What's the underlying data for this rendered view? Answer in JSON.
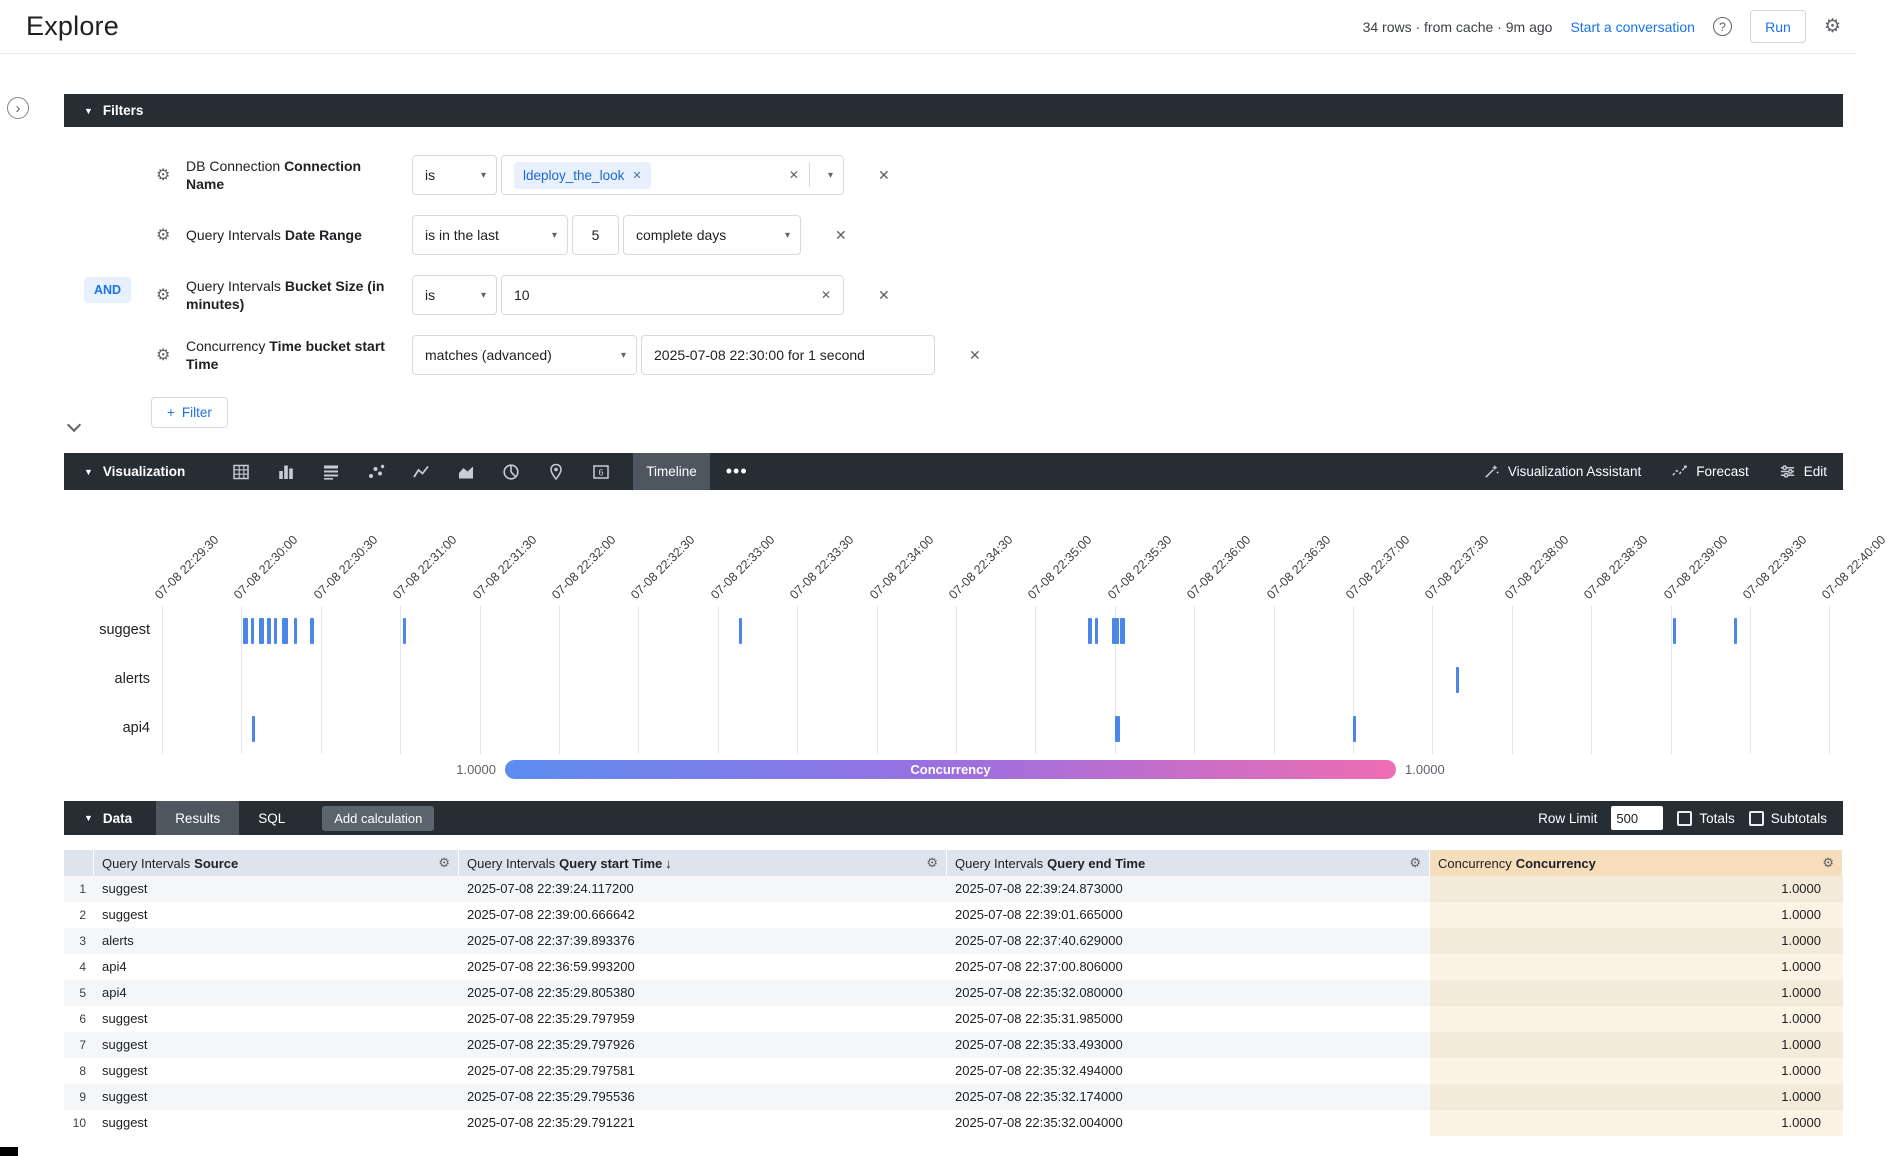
{
  "header": {
    "title": "Explore",
    "status": "34 rows · from cache · 9m ago",
    "conversation_link": "Start a conversation",
    "run_label": "Run"
  },
  "icons": {
    "gear": "⚙",
    "close": "✕",
    "caret_down": "▾",
    "triangle_down": "▼",
    "chevron_right": "›",
    "question": "?",
    "plus": "+",
    "dots": "•••"
  },
  "filters": {
    "section_label": "Filters",
    "and_label": "AND",
    "add_filter_label": "Filter",
    "rows": [
      {
        "kind": "chip",
        "field_prefix": "DB Connection",
        "field_name": "Connection Name",
        "operator": "is",
        "chip": "ldeploy_the_look"
      },
      {
        "kind": "last",
        "field_prefix": "Query Intervals",
        "field_name": "Date Range",
        "operator": "is in the last",
        "value": "5",
        "unit": "complete days"
      },
      {
        "kind": "text",
        "field_prefix": "Query Intervals",
        "field_name": "Bucket Size (in minutes)",
        "operator": "is",
        "value": "10"
      },
      {
        "kind": "advanced",
        "field_prefix": "Concurrency",
        "field_name": "Time bucket start Time",
        "operator": "matches (advanced)",
        "value": "2025-07-08 22:30:00 for 1 second"
      }
    ]
  },
  "visualization": {
    "section_label": "Visualization",
    "icons": [
      "table-icon",
      "column-chart-icon",
      "report-table-icon",
      "scatter-chart-icon",
      "line-chart-icon",
      "area-chart-icon",
      "pie-chart-icon",
      "map-icon",
      "single-value-icon"
    ],
    "single_value_glyph": "6",
    "active_tab": "Timeline",
    "assistant_label": "Visualization Assistant",
    "forecast_label": "Forecast",
    "edit_label": "Edit"
  },
  "chart_data": {
    "type": "timeline",
    "title": "",
    "x_axis": {
      "start": "2025-07-08 22:29:30",
      "interval_seconds": 30,
      "tick_labels": [
        "07-08 22:29:30",
        "07-08 22:30:00",
        "07-08 22:30:30",
        "07-08 22:31:00",
        "07-08 22:31:30",
        "07-08 22:32:00",
        "07-08 22:32:30",
        "07-08 22:33:00",
        "07-08 22:33:30",
        "07-08 22:34:00",
        "07-08 22:34:30",
        "07-08 22:35:00",
        "07-08 22:35:30",
        "07-08 22:36:00",
        "07-08 22:36:30",
        "07-08 22:37:00",
        "07-08 22:37:30",
        "07-08 22:38:00",
        "07-08 22:38:30",
        "07-08 22:39:00",
        "07-08 22:39:30",
        "07-08 22:40:00"
      ]
    },
    "rows": [
      "suggest",
      "alerts",
      "api4"
    ],
    "events": {
      "suggest": [
        {
          "t": 30.5,
          "d": 2
        },
        {
          "t": 33.5,
          "d": 1
        },
        {
          "t": 36.5,
          "d": 2
        },
        {
          "t": 39.5,
          "d": 1.5
        },
        {
          "t": 42.5,
          "d": 1
        },
        {
          "t": 45.5,
          "d": 2
        },
        {
          "t": 50,
          "d": 1
        },
        {
          "t": 56,
          "d": 1.5
        },
        {
          "t": 91,
          "d": 1
        },
        {
          "t": 218,
          "d": 1
        },
        {
          "t": 350,
          "d": 1.5
        },
        {
          "t": 352.5,
          "d": 1
        },
        {
          "t": 359,
          "d": 2.5
        },
        {
          "t": 362,
          "d": 2
        },
        {
          "t": 571,
          "d": 1
        },
        {
          "t": 594,
          "d": 1
        }
      ],
      "alerts": [
        {
          "t": 489,
          "d": 1
        }
      ],
      "api4": [
        {
          "t": 34,
          "d": 1
        },
        {
          "t": 360,
          "d": 2
        },
        {
          "t": 450,
          "d": 1
        }
      ]
    },
    "mark_color": "#4c86e8",
    "legend": {
      "label": "Concurrency",
      "min": "1.0000",
      "max": "1.0000",
      "gradient": [
        "#5b8def",
        "#9b6fe0",
        "#ef6db2"
      ]
    }
  },
  "data_section": {
    "section_label": "Data",
    "tabs": [
      {
        "label": "Results",
        "active": true
      },
      {
        "label": "SQL",
        "active": false
      }
    ],
    "add_calculation_label": "Add calculation",
    "row_limit_label": "Row Limit",
    "row_limit_value": "500",
    "totals_label": "Totals",
    "subtotals_label": "Subtotals",
    "table": {
      "columns": [
        {
          "prefix": "Query Intervals",
          "name": "Source",
          "sort": "",
          "measure": false
        },
        {
          "prefix": "Query Intervals",
          "name": "Query start Time",
          "sort": "↓",
          "measure": false
        },
        {
          "prefix": "Query Intervals",
          "name": "Query end Time",
          "sort": "",
          "measure": false
        },
        {
          "prefix": "Concurrency",
          "name": "Concurrency",
          "sort": "",
          "measure": true
        }
      ],
      "rows": [
        [
          "suggest",
          "2025-07-08 22:39:24.117200",
          "2025-07-08 22:39:24.873000",
          "1.0000"
        ],
        [
          "suggest",
          "2025-07-08 22:39:00.666642",
          "2025-07-08 22:39:01.665000",
          "1.0000"
        ],
        [
          "alerts",
          "2025-07-08 22:37:39.893376",
          "2025-07-08 22:37:40.629000",
          "1.0000"
        ],
        [
          "api4",
          "2025-07-08 22:36:59.993200",
          "2025-07-08 22:37:00.806000",
          "1.0000"
        ],
        [
          "api4",
          "2025-07-08 22:35:29.805380",
          "2025-07-08 22:35:32.080000",
          "1.0000"
        ],
        [
          "suggest",
          "2025-07-08 22:35:29.797959",
          "2025-07-08 22:35:31.985000",
          "1.0000"
        ],
        [
          "suggest",
          "2025-07-08 22:35:29.797926",
          "2025-07-08 22:35:33.493000",
          "1.0000"
        ],
        [
          "suggest",
          "2025-07-08 22:35:29.797581",
          "2025-07-08 22:35:32.494000",
          "1.0000"
        ],
        [
          "suggest",
          "2025-07-08 22:35:29.795536",
          "2025-07-08 22:35:32.174000",
          "1.0000"
        ],
        [
          "suggest",
          "2025-07-08 22:35:29.791221",
          "2025-07-08 22:35:32.004000",
          "1.0000"
        ]
      ]
    }
  }
}
